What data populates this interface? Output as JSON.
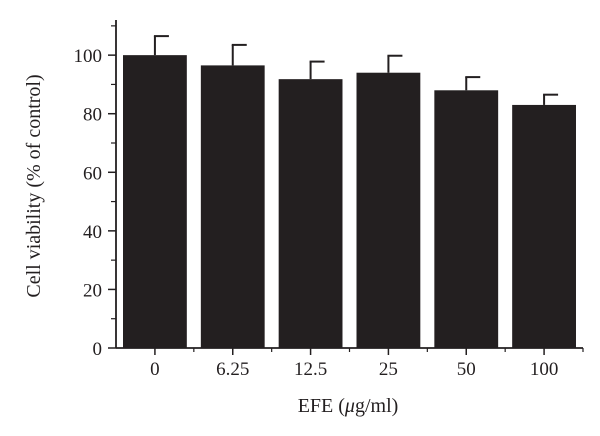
{
  "chart_data": {
    "type": "bar",
    "categories": [
      "0",
      "6.25",
      "12.5",
      "25",
      "50",
      "100"
    ],
    "values": [
      100,
      96.5,
      91.8,
      94.0,
      88.0,
      83.0
    ],
    "errors": [
      6.5,
      7.0,
      6.0,
      5.8,
      4.5,
      3.5
    ],
    "xlabel_prefix": "EFE (",
    "xlabel_greek": "μ",
    "xlabel_suffix": "g/ml)",
    "ylabel": "Cell viability (% of control)",
    "ylim": [
      0,
      112
    ],
    "yticks": [
      0,
      20,
      40,
      60,
      80,
      100
    ],
    "grid": false,
    "colors": {
      "bar": "#231f20",
      "axis": "#231f20"
    }
  }
}
